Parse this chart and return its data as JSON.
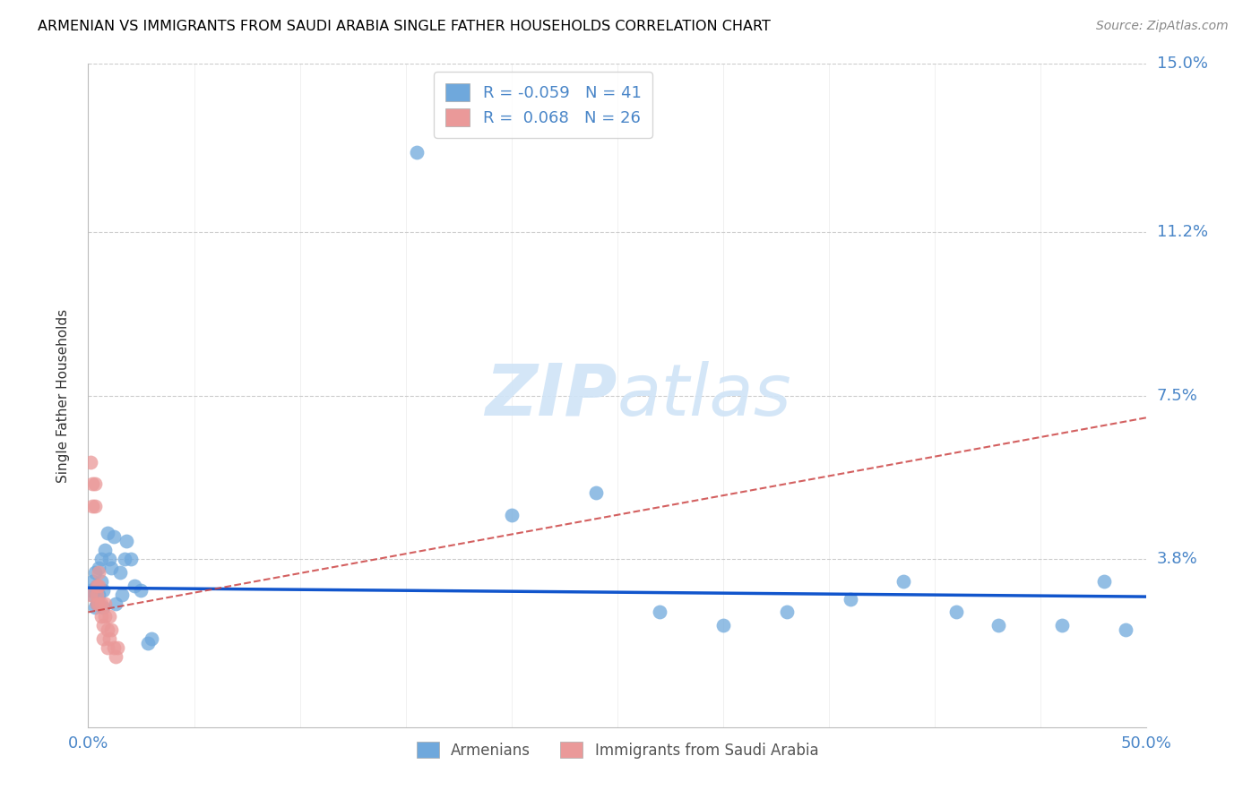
{
  "title": "ARMENIAN VS IMMIGRANTS FROM SAUDI ARABIA SINGLE FATHER HOUSEHOLDS CORRELATION CHART",
  "source": "Source: ZipAtlas.com",
  "ylabel": "Single Father Households",
  "xlim": [
    0.0,
    0.5
  ],
  "ylim": [
    0.0,
    0.15
  ],
  "ytick_vals": [
    0.038,
    0.075,
    0.112,
    0.15
  ],
  "ytick_labels": [
    "3.8%",
    "7.5%",
    "11.2%",
    "15.0%"
  ],
  "xtick_vals": [
    0.0,
    0.05,
    0.1,
    0.15,
    0.2,
    0.25,
    0.3,
    0.35,
    0.4,
    0.45,
    0.5
  ],
  "xtick_labels": [
    "0.0%",
    "",
    "",
    "",
    "",
    "",
    "",
    "",
    "",
    "",
    "50.0%"
  ],
  "legend_r1": "-0.059",
  "legend_n1": "41",
  "legend_r2": "0.068",
  "legend_n2": "26",
  "blue_color": "#6fa8dc",
  "pink_color": "#ea9999",
  "blue_line_color": "#1155cc",
  "pink_line_color": "#cc4444",
  "grid_color": "#cccccc",
  "title_color": "#000000",
  "label_color": "#4a86c8",
  "source_color": "#888888",
  "watermark_color": "#d0e4f7",
  "blue_slope": -0.004,
  "blue_intercept": 0.0315,
  "pink_slope": 0.088,
  "pink_intercept": 0.026,
  "arm_x": [
    0.001,
    0.002,
    0.002,
    0.003,
    0.003,
    0.004,
    0.004,
    0.005,
    0.005,
    0.006,
    0.006,
    0.007,
    0.007,
    0.008,
    0.009,
    0.01,
    0.011,
    0.012,
    0.013,
    0.015,
    0.016,
    0.017,
    0.018,
    0.02,
    0.022,
    0.025,
    0.028,
    0.03,
    0.155,
    0.2,
    0.24,
    0.27,
    0.3,
    0.33,
    0.36,
    0.385,
    0.41,
    0.43,
    0.46,
    0.48,
    0.49
  ],
  "arm_y": [
    0.031,
    0.033,
    0.03,
    0.027,
    0.035,
    0.028,
    0.032,
    0.036,
    0.03,
    0.033,
    0.038,
    0.031,
    0.027,
    0.04,
    0.044,
    0.038,
    0.036,
    0.043,
    0.028,
    0.035,
    0.03,
    0.038,
    0.042,
    0.038,
    0.032,
    0.031,
    0.019,
    0.02,
    0.13,
    0.048,
    0.053,
    0.026,
    0.023,
    0.026,
    0.029,
    0.033,
    0.026,
    0.023,
    0.023,
    0.033,
    0.022
  ],
  "sau_x": [
    0.001,
    0.001,
    0.002,
    0.002,
    0.003,
    0.003,
    0.004,
    0.004,
    0.004,
    0.005,
    0.005,
    0.005,
    0.006,
    0.006,
    0.007,
    0.007,
    0.008,
    0.008,
    0.009,
    0.009,
    0.01,
    0.01,
    0.011,
    0.012,
    0.013,
    0.014
  ],
  "sau_y": [
    0.06,
    0.03,
    0.055,
    0.05,
    0.055,
    0.05,
    0.032,
    0.03,
    0.028,
    0.035,
    0.032,
    0.028,
    0.025,
    0.028,
    0.023,
    0.02,
    0.025,
    0.028,
    0.022,
    0.018,
    0.025,
    0.02,
    0.022,
    0.018,
    0.016,
    0.018
  ]
}
